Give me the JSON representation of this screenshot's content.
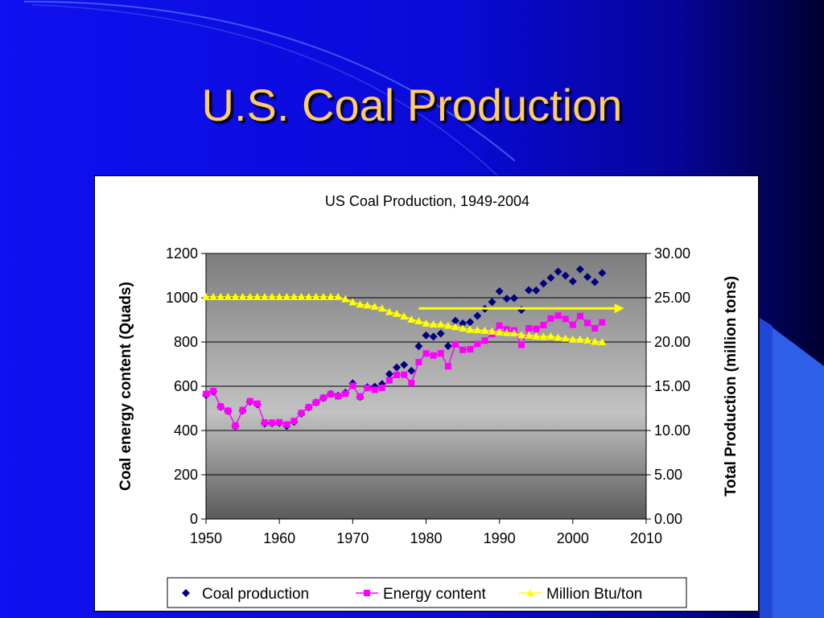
{
  "slide": {
    "title": "U.S. Coal Production",
    "colors": {
      "background": "#0a0ae6",
      "title": "#ffcc66"
    }
  },
  "chart_data": {
    "type": "line",
    "title": "US Coal Production, 1949-2004",
    "x": [
      1949,
      1950,
      1951,
      1952,
      1953,
      1954,
      1955,
      1956,
      1957,
      1958,
      1959,
      1960,
      1961,
      1962,
      1963,
      1964,
      1965,
      1966,
      1967,
      1968,
      1969,
      1970,
      1971,
      1972,
      1973,
      1974,
      1975,
      1976,
      1977,
      1978,
      1979,
      1980,
      1981,
      1982,
      1983,
      1984,
      1985,
      1986,
      1987,
      1988,
      1989,
      1990,
      1991,
      1992,
      1993,
      1994,
      1995,
      1996,
      1997,
      1998,
      1999,
      2000,
      2001,
      2002,
      2003,
      2004
    ],
    "x_ticks": [
      "1950",
      "1960",
      "1970",
      "1980",
      "1990",
      "2000",
      "2010"
    ],
    "xlim": [
      1950,
      2010
    ],
    "y_left": {
      "label": "Coal energy content (Quads)",
      "ticks": [
        "0",
        "200",
        "400",
        "600",
        "800",
        "1000",
        "1200"
      ],
      "range": [
        0,
        1200
      ]
    },
    "y_right": {
      "label": "Total Production (million tons)",
      "ticks": [
        "0.00",
        "5.00",
        "10.00",
        "15.00",
        "20.00",
        "25.00",
        "30.00"
      ],
      "range": [
        0,
        30
      ]
    },
    "grid": true,
    "legend_position": "bottom",
    "series": [
      {
        "name": "Coal production",
        "axis": "left",
        "marker": "diamond",
        "line": false,
        "color": "#000080",
        "values": [
          null,
          560,
          576,
          507,
          488,
          420,
          490,
          530,
          518,
          432,
          433,
          434,
          420,
          439,
          477,
          504,
          527,
          547,
          565,
          557,
          571,
          613,
          552,
          596,
          598,
          610,
          655,
          685,
          697,
          670,
          781,
          830,
          824,
          838,
          782,
          896,
          884,
          890,
          918,
          950,
          981,
          1029,
          996,
          998,
          945,
          1034,
          1033,
          1064,
          1090,
          1118,
          1100,
          1074,
          1128,
          1094,
          1071,
          1112
        ]
      },
      {
        "name": "Energy content",
        "axis": "left",
        "marker": "square",
        "line": true,
        "color": "#ff00ff",
        "values": [
          null,
          565,
          578,
          508,
          489,
          421,
          492,
          532,
          521,
          436,
          435,
          437,
          427,
          443,
          479,
          505,
          527,
          548,
          564,
          555,
          566,
          602,
          553,
          592,
          584,
          593,
          627,
          651,
          652,
          615,
          709,
          748,
          739,
          749,
          690,
          790,
          764,
          767,
          791,
          806,
          836,
          874,
          857,
          852,
          787,
          862,
          859,
          876,
          906,
          919,
          904,
          878,
          917,
          886,
          862,
          889
        ]
      },
      {
        "name": "Million Btu/ton",
        "axis": "right",
        "marker": "triangle",
        "line": true,
        "color": "#ffff00",
        "values": [
          25.1,
          25.1,
          25.1,
          25.1,
          25.1,
          25.1,
          25.1,
          25.1,
          25.1,
          25.1,
          25.1,
          25.1,
          25.1,
          25.1,
          25.1,
          25.1,
          25.1,
          25.1,
          25.1,
          25.1,
          24.85,
          24.5,
          24.25,
          24.15,
          24.0,
          23.8,
          23.4,
          23.2,
          22.9,
          22.55,
          22.35,
          22.1,
          22.0,
          22.0,
          21.85,
          21.7,
          21.55,
          21.4,
          21.35,
          21.3,
          21.2,
          21.1,
          21.05,
          21.0,
          20.8,
          20.75,
          20.65,
          20.6,
          20.65,
          20.5,
          20.4,
          20.3,
          20.3,
          20.2,
          20.05,
          20.0
        ]
      }
    ],
    "arrow": {
      "from_x": 1979,
      "to_x": 2007,
      "y_right": 23.8,
      "color": "#ffff00"
    }
  }
}
